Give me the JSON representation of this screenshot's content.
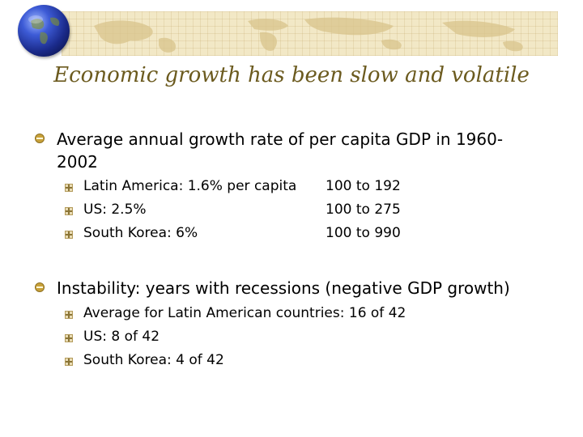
{
  "title": "Economic growth has been slow and volatile",
  "section1": {
    "heading_line1": "Average annual growth rate of per capita GDP in 1960-",
    "heading_line2": "2002",
    "items": [
      {
        "label": "Latin America: 1.6% per capita",
        "value": "100 to 192"
      },
      {
        "label": "US: 2.5%",
        "value": "100 to 275"
      },
      {
        "label": "South Korea: 6%",
        "value": "100 to 990"
      }
    ]
  },
  "section2": {
    "heading": "Instability: years with recessions (negative GDP growth)",
    "items": [
      "Average for Latin American countries: 16 of 42",
      "US: 8 of 42",
      "South Korea: 4 of 42"
    ]
  },
  "colors": {
    "title": "#6b5a1e",
    "accent": "#c9a23a",
    "banner": "#f2e8c6"
  },
  "icons": {
    "logo": "globe-icon",
    "bullet_level1": "round-bullet-icon",
    "bullet_level2": "square-bullet-icon"
  }
}
